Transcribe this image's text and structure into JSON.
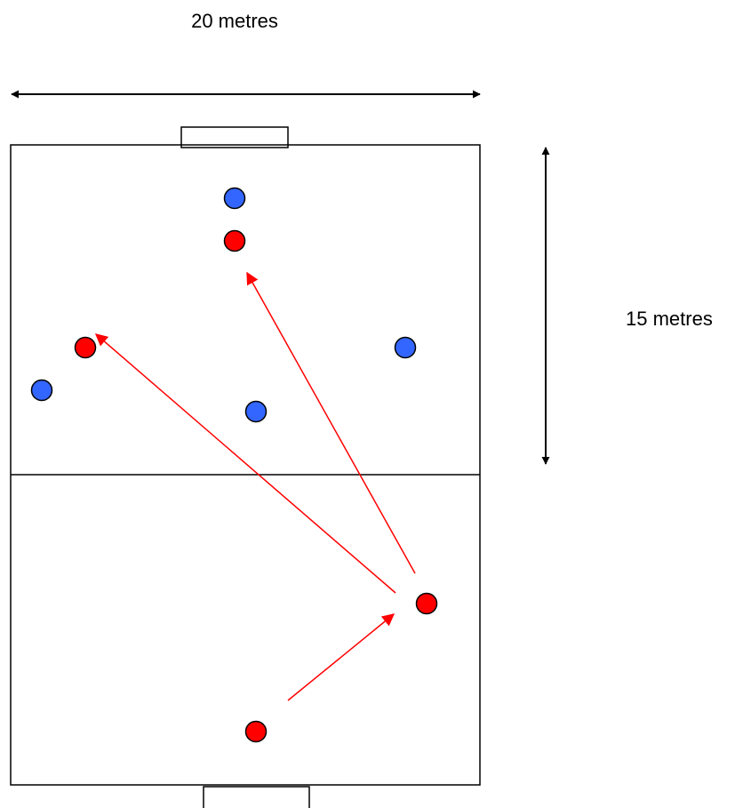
{
  "labels": {
    "width": "20 metres",
    "length": "15 metres"
  },
  "colors": {
    "team_blue": "#3366ff",
    "team_red": "#ff0000",
    "pass_arrow": "#ff0000",
    "pitch_line": "#000000",
    "dimension_arrow": "#000000"
  }
}
